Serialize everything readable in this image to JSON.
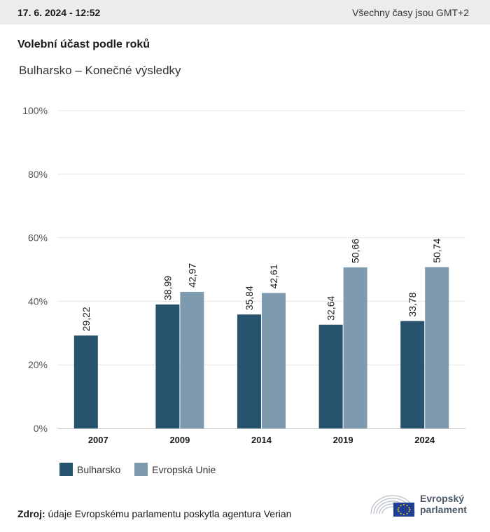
{
  "header": {
    "date": "17. 6. 2024 - 12:52",
    "timezone_note": "Všechny časy jsou GMT+2"
  },
  "title": "Volební účast podle roků",
  "subtitle": "Bulharsko – Konečné výsledky",
  "chart_data": {
    "type": "bar",
    "categories": [
      "2007",
      "2009",
      "2014",
      "2019",
      "2024"
    ],
    "series": [
      {
        "name": "Bulharsko",
        "color": "#27536f",
        "values": [
          29.22,
          38.99,
          35.84,
          32.64,
          33.78
        ]
      },
      {
        "name": "Evropská Unie",
        "color": "#7e9aae",
        "values": [
          null,
          42.97,
          42.61,
          50.66,
          50.74
        ]
      }
    ],
    "value_labels": [
      [
        "29,22",
        "38,99",
        "35,84",
        "32,64",
        "33,78"
      ],
      [
        "",
        "42,97",
        "42,61",
        "50,66",
        "50,74"
      ]
    ],
    "y_ticks": [
      0,
      20,
      40,
      60,
      80,
      100
    ],
    "y_tick_labels": [
      "0%",
      "20%",
      "40%",
      "60%",
      "80%",
      "100%"
    ],
    "ylim": [
      0,
      100
    ],
    "grid": true,
    "legend_position": "bottom-left"
  },
  "legend": [
    {
      "label": "Bulharsko",
      "color": "#27536f"
    },
    {
      "label": "Evropská Unie",
      "color": "#7e9aae"
    }
  ],
  "source": {
    "label": "Zdroj:",
    "text": "údaje Evropskému parlamentu poskytla agentura Verian"
  },
  "logo": {
    "line1": "Evropský",
    "line2": "parlament"
  }
}
